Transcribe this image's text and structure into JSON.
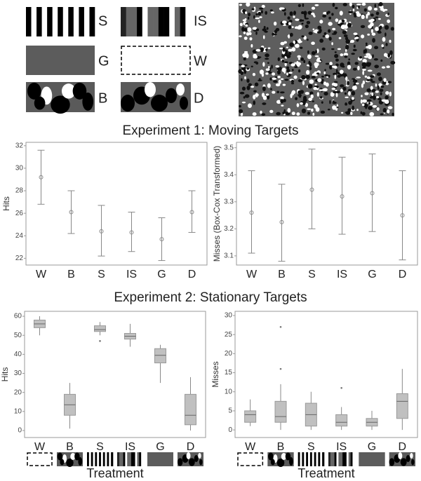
{
  "panels": {
    "treatments": [
      {
        "label": "S"
      },
      {
        "label": "IS"
      },
      {
        "label": "G"
      },
      {
        "label": "W"
      },
      {
        "label": "B"
      },
      {
        "label": "D"
      }
    ]
  },
  "sections": [
    {
      "title": "Experiment 1: Moving Targets"
    },
    {
      "title": "Experiment 2: Stationary Targets"
    }
  ],
  "chart_data": [
    {
      "type": "errorbar",
      "ylabel": "Hits",
      "categories": [
        "W",
        "B",
        "S",
        "IS",
        "G",
        "D"
      ],
      "ylim": [
        21.4,
        32.3
      ],
      "yticks": [
        22,
        24,
        26,
        28,
        30,
        32
      ],
      "series": [
        {
          "color": "#888888",
          "values": [
            29.2,
            26.1,
            24.4,
            24.3,
            23.7,
            26.1
          ],
          "lower": [
            26.8,
            24.2,
            22.2,
            22.6,
            21.8,
            24.3
          ],
          "upper": [
            31.6,
            28.0,
            26.7,
            26.1,
            25.6,
            28.0
          ]
        }
      ]
    },
    {
      "type": "errorbar",
      "ylabel": "Misses (Box-Cox Transformed)",
      "categories": [
        "W",
        "B",
        "S",
        "IS",
        "G",
        "D"
      ],
      "ylim": [
        3.066,
        3.52
      ],
      "yticks": [
        3.1,
        3.2,
        3.3,
        3.4,
        3.5
      ],
      "series": [
        {
          "color": "#888888",
          "values": [
            3.26,
            3.225,
            3.345,
            3.32,
            3.332,
            3.25
          ],
          "lower": [
            3.11,
            3.08,
            3.2,
            3.18,
            3.19,
            3.085
          ],
          "upper": [
            3.415,
            3.365,
            3.495,
            3.465,
            3.477,
            3.415
          ]
        }
      ]
    },
    {
      "type": "box",
      "ylabel": "Hits",
      "xlabel": "Treatment",
      "treatment_icons": true,
      "categories": [
        "W",
        "B",
        "S",
        "IS",
        "G",
        "D"
      ],
      "ylim": [
        -3.7,
        62.6
      ],
      "yticks": [
        0,
        10,
        20,
        30,
        40,
        50,
        60
      ],
      "series": [
        {
          "color": "#c0c0c0",
          "whisker_low": [
            50,
            1,
            50,
            44,
            25,
            0
          ],
          "q1": [
            54,
            8,
            52,
            48,
            35.5,
            3
          ],
          "median": [
            56,
            13.5,
            53,
            49.5,
            39.5,
            8
          ],
          "q3": [
            58,
            19,
            55,
            51,
            43,
            19
          ],
          "whisker_high": [
            60,
            25,
            57,
            56,
            45,
            28
          ],
          "outliers": [
            [],
            [],
            [
              47
            ],
            [],
            [],
            []
          ]
        }
      ]
    },
    {
      "type": "box",
      "ylabel": "Misses",
      "xlabel": "Treatment",
      "treatment_icons": true,
      "categories": [
        "W",
        "B",
        "S",
        "IS",
        "G",
        "D"
      ],
      "ylim": [
        -2.0,
        31.1
      ],
      "yticks": [
        0,
        5,
        10,
        15,
        20,
        25,
        30
      ],
      "series": [
        {
          "color": "#c0c0c0",
          "whisker_low": [
            1,
            0,
            0,
            0,
            0,
            0
          ],
          "q1": [
            2,
            2,
            1,
            1,
            1,
            3
          ],
          "median": [
            4,
            3.5,
            4,
            2,
            2,
            7.5
          ],
          "q3": [
            5,
            7.5,
            7,
            4,
            3,
            9.5
          ],
          "whisker_high": [
            8,
            12,
            10,
            6,
            5,
            16
          ],
          "outliers": [
            [],
            [
              16,
              27
            ],
            [],
            [
              11
            ],
            [],
            []
          ]
        }
      ]
    }
  ]
}
